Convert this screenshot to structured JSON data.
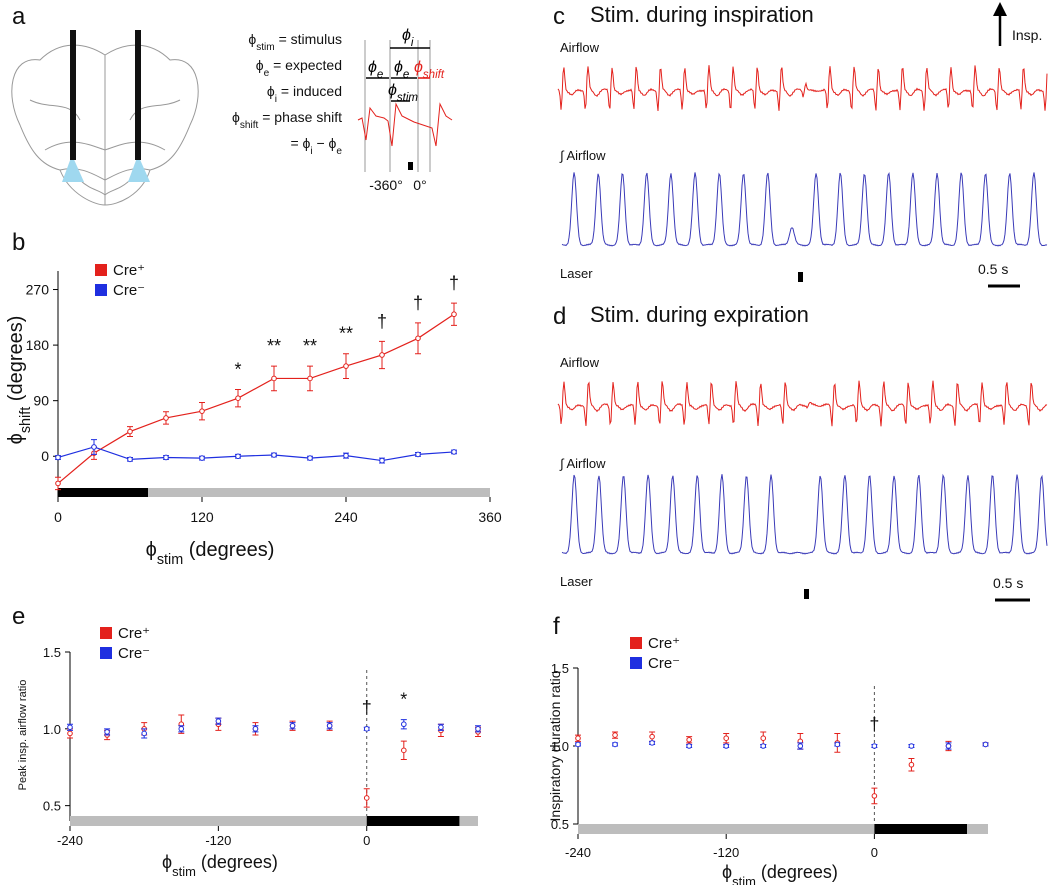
{
  "panel_a": {
    "label": "a",
    "definitions": [
      {
        "sym": "ϕ",
        "sub": "stim",
        "text": " = stimulus"
      },
      {
        "sym": "ϕ",
        "sub": "e",
        "text": " = expected"
      },
      {
        "sym": "ϕ",
        "sub": "i",
        "text": " = induced"
      },
      {
        "sym": "ϕ",
        "sub": "shift",
        "text": " = phase shift"
      }
    ],
    "formula": [
      "= ϕ",
      "i",
      " − ϕ",
      "e"
    ],
    "diagram_labels": [
      {
        "sym": "ϕ",
        "sub": "i"
      },
      {
        "sym": "ϕ",
        "sub": "e"
      },
      {
        "sym": "ϕ",
        "sub": "e"
      },
      {
        "sym": "ϕ",
        "sub": "shift"
      },
      {
        "sym": "ϕ",
        "sub": "stim"
      }
    ],
    "angles": [
      "-360°",
      "0°"
    ]
  },
  "panel_c": {
    "label": "c",
    "title": "Stim. during inspiration",
    "airflow": "Airflow",
    "integrated": "∫ Airflow",
    "laser": "Laser",
    "scale": "0.5 s",
    "arrow": "Insp."
  },
  "panel_d": {
    "label": "d",
    "title": "Stim. during expiration",
    "airflow": "Airflow",
    "integrated": "∫ Airflow",
    "laser": "Laser",
    "scale": "0.5 s"
  },
  "chart_data": [
    {
      "type": "line",
      "label": "b",
      "xlabel": [
        "ϕ",
        "stim",
        " (degrees)"
      ],
      "ylabel": [
        "ϕ",
        "shift",
        " (degrees)"
      ],
      "x": [
        0,
        30,
        60,
        90,
        120,
        150,
        180,
        210,
        240,
        270,
        300,
        330
      ],
      "series": [
        {
          "name": "Cre⁺",
          "color": "#e3211c",
          "values": [
            -44,
            5,
            40,
            62,
            73,
            94,
            126,
            126,
            146,
            164,
            191,
            230
          ],
          "errors": [
            10,
            10,
            8,
            10,
            14,
            14,
            20,
            20,
            20,
            22,
            25,
            18
          ]
        },
        {
          "name": "Cre⁻",
          "color": "#1f2fe0",
          "values": [
            -2,
            15,
            -5,
            -2,
            -3,
            0,
            2,
            -3,
            1,
            -7,
            3,
            7
          ],
          "errors": [
            3,
            12,
            3,
            3,
            3,
            3,
            3,
            3,
            4,
            4,
            3,
            3
          ]
        }
      ],
      "xlim": [
        0,
        360
      ],
      "ylim": [
        -66,
        300
      ],
      "xticks": [
        0,
        120,
        240,
        360
      ],
      "yticks": [
        0,
        90,
        180,
        270
      ],
      "annotations": [
        {
          "x": 150,
          "text": "*"
        },
        {
          "x": 180,
          "text": "**"
        },
        {
          "x": 210,
          "text": "**"
        },
        {
          "x": 240,
          "text": "**"
        },
        {
          "x": 270,
          "text": "†"
        },
        {
          "x": 300,
          "text": "†"
        },
        {
          "x": 330,
          "text": "†"
        }
      ],
      "phase_bar": [
        {
          "from": 0,
          "to": 75,
          "color": "#000000"
        },
        {
          "from": 75,
          "to": 360,
          "color": "#bdbdbd"
        }
      ]
    },
    {
      "type": "scatter",
      "label": "e",
      "xlabel": [
        "ϕ",
        "stim",
        " (degrees)"
      ],
      "ylabel": [
        "Peak insp. airflow ratio"
      ],
      "x": [
        -240,
        -210,
        -180,
        -150,
        -120,
        -90,
        -60,
        -30,
        0,
        30,
        60,
        90
      ],
      "series": [
        {
          "name": "Cre⁺",
          "color": "#e3211c",
          "values": [
            0.97,
            0.96,
            1.0,
            1.03,
            1.03,
            1.0,
            1.02,
            1.02,
            0.55,
            0.86,
            0.99,
            0.98
          ],
          "errors": [
            0.03,
            0.03,
            0.04,
            0.06,
            0.04,
            0.04,
            0.03,
            0.03,
            0.06,
            0.06,
            0.04,
            0.03
          ]
        },
        {
          "name": "Cre⁻",
          "color": "#1f2fe0",
          "values": [
            1.01,
            0.98,
            0.97,
            1.0,
            1.05,
            1.0,
            1.02,
            1.02,
            1.0,
            1.03,
            1.01,
            1.0
          ],
          "errors": [
            0.02,
            0.02,
            0.03,
            0.02,
            0.02,
            0.02,
            0.02,
            0.02,
            0.01,
            0.03,
            0.02,
            0.02
          ]
        }
      ],
      "xlim": [
        -240,
        90
      ],
      "ylim": [
        0.4,
        1.5
      ],
      "xticks": [
        -240,
        -120,
        0
      ],
      "yticks": [
        0.5,
        {
          "value": 1,
          "label": "1.0"
        },
        1.5
      ],
      "vline": 0,
      "annotations": [
        {
          "x": 0,
          "text": "†"
        },
        {
          "x": 30,
          "text": "*"
        }
      ],
      "phase_bar": [
        {
          "from": -240,
          "to": 0,
          "color": "#bdbdbd"
        },
        {
          "from": 0,
          "to": 75,
          "color": "#000000"
        },
        {
          "from": 75,
          "to": 90,
          "color": "#bdbdbd"
        }
      ]
    },
    {
      "type": "scatter",
      "label": "f",
      "xlabel": [
        "ϕ",
        "stim",
        " (degrees)"
      ],
      "ylabel": [
        "Inspiratory duration ratio"
      ],
      "x": [
        -240,
        -210,
        -180,
        -150,
        -120,
        -90,
        -60,
        -30,
        0,
        30,
        60,
        90
      ],
      "series": [
        {
          "name": "Cre⁺",
          "color": "#e3211c",
          "values": [
            1.05,
            1.07,
            1.06,
            1.04,
            1.05,
            1.05,
            1.03,
            1.02,
            0.68,
            0.88,
            1.0,
            1.01
          ],
          "errors": [
            0.02,
            0.02,
            0.03,
            0.02,
            0.03,
            0.04,
            0.05,
            0.06,
            0.05,
            0.04,
            0.03,
            0.01
          ]
        },
        {
          "name": "Cre⁻",
          "color": "#1f2fe0",
          "values": [
            1.01,
            1.01,
            1.02,
            1.0,
            1.0,
            1.0,
            1.0,
            1.01,
            1.0,
            1.0,
            1.0,
            1.01
          ],
          "errors": [
            0.01,
            0.01,
            0.01,
            0.01,
            0.01,
            0.01,
            0.02,
            0.01,
            0.01,
            0.01,
            0.02,
            0.01
          ]
        }
      ],
      "xlim": [
        -240,
        92
      ],
      "ylim": [
        0.5,
        1.5
      ],
      "xticks": [
        -240,
        -120,
        0
      ],
      "yticks": [
        0.5,
        {
          "value": 1,
          "label": "1.0"
        },
        1.5
      ],
      "vline": 0,
      "annotations": [
        {
          "x": 0,
          "text": "†"
        }
      ],
      "phase_bar": [
        {
          "from": -240,
          "to": 0,
          "color": "#bdbdbd"
        },
        {
          "from": 0,
          "to": 75,
          "color": "#000000"
        },
        {
          "from": 75,
          "to": 92,
          "color": "#bdbdbd"
        }
      ]
    }
  ]
}
